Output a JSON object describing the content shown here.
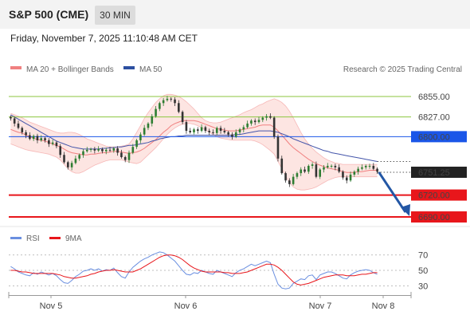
{
  "header": {
    "title": "S&P 500 (CME)",
    "timeframe": "30 MIN"
  },
  "datetime": "Friday, November 7, 2025 11:10:48 AM CET",
  "credit": "Research © 2025 Trading Central",
  "colors": {
    "bollinger_line": "#f08080",
    "bollinger_fill": "#fde0dd",
    "ma50": "#4455aa",
    "resistance": "#8cc63f",
    "support": "#e8161b",
    "pivot": "#1a56e8",
    "forecast_arrow": "#2357a5",
    "rsi": "#6a8fe0",
    "rsi_ma": "#e8161b",
    "candle_up": "#2e7d32",
    "candle_down": "#333333"
  },
  "chart_data": [
    {
      "type": "candlestick",
      "legend": [
        {
          "name": "MA 20 + Bollinger Bands",
          "color": "#f08080"
        },
        {
          "name": "MA 50",
          "color": "#2c4fa0"
        }
      ],
      "x_ticks": [
        "Nov 5",
        "Nov 6",
        "Nov 7",
        "Nov 8"
      ],
      "y_range": [
        6678,
        6878
      ],
      "current_price": {
        "label": "6751.25",
        "value": 6751.25
      },
      "levels": [
        {
          "label": "6855.00",
          "value": 6855,
          "kind": "resistance"
        },
        {
          "label": "6827.00",
          "value": 6827,
          "kind": "resistance"
        },
        {
          "label": "6800.00",
          "value": 6800,
          "kind": "pivot"
        },
        {
          "label": "6720.00",
          "value": 6720,
          "kind": "support"
        },
        {
          "label": "6690.00",
          "value": 6690,
          "kind": "support"
        }
      ],
      "close_series": [
        6825,
        6818,
        6812,
        6806,
        6802,
        6797,
        6801,
        6795,
        6798,
        6795,
        6790,
        6792,
        6787,
        6775,
        6765,
        6758,
        6764,
        6770,
        6775,
        6780,
        6782,
        6783,
        6781,
        6783,
        6780,
        6782,
        6781,
        6784,
        6778,
        6772,
        6768,
        6778,
        6786,
        6795,
        6803,
        6812,
        6818,
        6828,
        6838,
        6846,
        6850,
        6852,
        6851,
        6846,
        6834,
        6820,
        6808,
        6806,
        6810,
        6808,
        6813,
        6808,
        6806,
        6805,
        6812,
        6808,
        6806,
        6803,
        6800,
        6806,
        6810,
        6813,
        6818,
        6822,
        6820,
        6823,
        6826,
        6828,
        6826,
        6800,
        6770,
        6750,
        6740,
        6735,
        6745,
        6750,
        6755,
        6752,
        6760,
        6762,
        6745,
        6755,
        6758,
        6760,
        6760,
        6758,
        6752,
        6744,
        6740,
        6748,
        6752,
        6756,
        6758,
        6760,
        6760,
        6756,
        6752
      ],
      "ma20": [
        6810,
        6808,
        6806,
        6805,
        6802,
        6800,
        6798,
        6796,
        6795,
        6794,
        6792,
        6790,
        6788,
        6786,
        6783,
        6780,
        6778,
        6777,
        6776,
        6775,
        6775,
        6776,
        6776,
        6777,
        6778,
        6778,
        6779,
        6780,
        6780,
        6779,
        6778,
        6777,
        6778,
        6779,
        6781,
        6784,
        6788,
        6792,
        6796,
        6801,
        6806,
        6810,
        6815,
        6818,
        6820,
        6822,
        6822,
        6822,
        6822,
        6821,
        6819,
        6817,
        6815,
        6813,
        6811,
        6810,
        6809,
        6808,
        6808,
        6808,
        6809,
        6810,
        6811,
        6812,
        6813,
        6815,
        6816,
        6816,
        6816,
        6813,
        6808,
        6802,
        6796,
        6790,
        6785,
        6781,
        6777,
        6773,
        6769,
        6766,
        6763,
        6761,
        6759,
        6757,
        6756,
        6755,
        6754,
        6752,
        6751,
        6751,
        6751,
        6752,
        6752,
        6753,
        6754,
        6754,
        6754
      ],
      "bollinger_upper": [
        6832,
        6830,
        6828,
        6826,
        6823,
        6820,
        6818,
        6816,
        6814,
        6812,
        6810,
        6808,
        6806,
        6805,
        6805,
        6806,
        6806,
        6805,
        6803,
        6800,
        6797,
        6795,
        6793,
        6791,
        6789,
        6787,
        6786,
        6786,
        6786,
        6787,
        6788,
        6790,
        6797,
        6806,
        6815,
        6825,
        6833,
        6840,
        6847,
        6852,
        6856,
        6858,
        6858,
        6857,
        6855,
        6852,
        6848,
        6843,
        6838,
        6832,
        6826,
        6822,
        6820,
        6819,
        6819,
        6820,
        6822,
        6824,
        6826,
        6828,
        6830,
        6833,
        6835,
        6837,
        6840,
        6843,
        6845,
        6848,
        6850,
        6852,
        6850,
        6847,
        6842,
        6835,
        6826,
        6816,
        6806,
        6797,
        6790,
        6784,
        6779,
        6775,
        6771,
        6768,
        6766,
        6764,
        6763,
        6762,
        6762,
        6762,
        6762,
        6762,
        6762,
        6762,
        6762,
        6762,
        6762
      ],
      "bollinger_lower": [
        6790,
        6788,
        6786,
        6784,
        6782,
        6781,
        6780,
        6779,
        6778,
        6777,
        6776,
        6774,
        6772,
        6768,
        6762,
        6756,
        6752,
        6750,
        6750,
        6752,
        6755,
        6758,
        6761,
        6763,
        6765,
        6767,
        6768,
        6768,
        6768,
        6768,
        6767,
        6765,
        6764,
        6763,
        6765,
        6770,
        6775,
        6780,
        6785,
        6791,
        6797,
        6803,
        6808,
        6812,
        6815,
        6817,
        6818,
        6818,
        6817,
        6815,
        6812,
        6809,
        6806,
        6803,
        6800,
        6798,
        6797,
        6796,
        6795,
        6795,
        6795,
        6795,
        6795,
        6795,
        6794,
        6792,
        6789,
        6785,
        6781,
        6776,
        6766,
        6756,
        6746,
        6737,
        6731,
        6728,
        6727,
        6727,
        6728,
        6729,
        6731,
        6734,
        6737,
        6740,
        6742,
        6744,
        6745,
        6745,
        6745,
        6745,
        6745,
        6745,
        6745,
        6745,
        6745,
        6745,
        6745
      ],
      "ma50": [
        6830,
        6827,
        6824,
        6821,
        6818,
        6815,
        6812,
        6809,
        6806,
        6803,
        6800,
        6797,
        6794,
        6792,
        6790,
        6788,
        6786,
        6785,
        6784,
        6783,
        6783,
        6783,
        6783,
        6783,
        6784,
        6784,
        6785,
        6785,
        6786,
        6786,
        6787,
        6788,
        6788,
        6789,
        6790,
        6791,
        6792,
        6794,
        6795,
        6797,
        6798,
        6799,
        6800,
        6800,
        6801,
        6801,
        6802,
        6802,
        6802,
        6802,
        6802,
        6802,
        6802,
        6802,
        6802,
        6802,
        6802,
        6802,
        6802,
        6803,
        6803,
        6804,
        6805,
        6806,
        6807,
        6808,
        6808,
        6808,
        6808,
        6807,
        6806,
        6804,
        6802,
        6800,
        6797,
        6795,
        6793,
        6791,
        6789,
        6787,
        6785,
        6783,
        6781,
        6780,
        6778,
        6777,
        6776,
        6775,
        6774,
        6773,
        6772,
        6771,
        6770,
        6769,
        6768,
        6767,
        6766
      ]
    },
    {
      "type": "line",
      "legend": [
        {
          "name": "RSI",
          "color": "#6a8fe0"
        },
        {
          "name": "9MA",
          "color": "#e8161b"
        }
      ],
      "y_range": [
        20,
        78
      ],
      "y_ticks": [
        30,
        50,
        70
      ],
      "rsi": [
        55,
        52,
        48,
        46,
        44,
        43,
        47,
        45,
        48,
        46,
        44,
        46,
        43,
        38,
        34,
        33,
        37,
        42,
        45,
        49,
        50,
        52,
        50,
        52,
        49,
        51,
        50,
        53,
        47,
        42,
        40,
        48,
        54,
        58,
        62,
        65,
        67,
        70,
        72,
        74,
        73,
        70,
        66,
        62,
        56,
        50,
        45,
        44,
        47,
        46,
        50,
        48,
        46,
        45,
        50,
        48,
        46,
        44,
        42,
        47,
        50,
        52,
        55,
        58,
        56,
        58,
        60,
        62,
        60,
        45,
        32,
        27,
        26,
        27,
        33,
        36,
        39,
        38,
        43,
        44,
        38,
        44,
        46,
        48,
        48,
        46,
        43,
        40,
        39,
        44,
        47,
        49,
        50,
        51,
        50,
        47,
        45
      ],
      "rsi_ma": [
        50,
        50,
        49,
        48,
        48,
        47,
        46,
        46,
        46,
        46,
        46,
        46,
        45,
        44,
        42,
        41,
        40,
        40,
        41,
        42,
        43,
        45,
        46,
        48,
        49,
        50,
        50,
        51,
        50,
        49,
        48,
        48,
        48,
        50,
        52,
        55,
        58,
        61,
        64,
        67,
        69,
        70,
        70,
        69,
        67,
        64,
        60,
        56,
        53,
        51,
        49,
        48,
        48,
        48,
        48,
        48,
        47,
        47,
        46,
        46,
        46,
        47,
        48,
        50,
        52,
        54,
        56,
        58,
        58,
        57,
        54,
        50,
        45,
        40,
        35,
        32,
        31,
        32,
        33,
        35,
        37,
        39,
        41,
        42,
        43,
        44,
        44,
        44,
        43,
        43,
        43,
        44,
        45,
        45,
        46,
        47,
        47
      ]
    }
  ]
}
